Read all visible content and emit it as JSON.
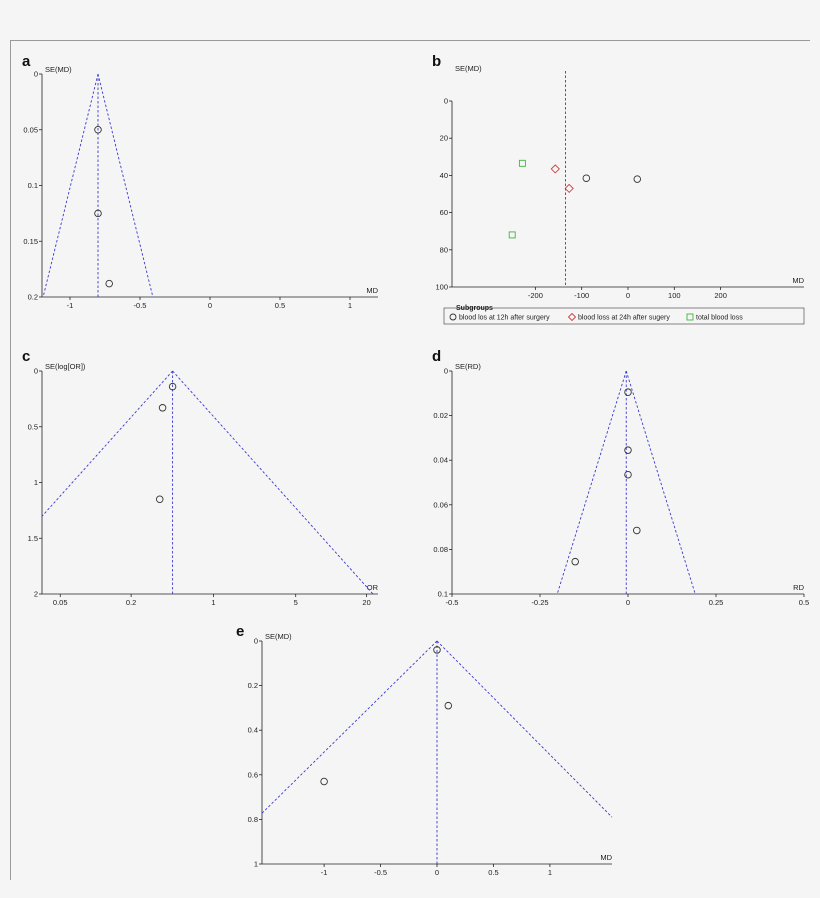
{
  "chart_data": [
    {
      "panel": "a",
      "type": "scatter",
      "xlabel": "MD",
      "ylabel": "SE(MD)",
      "xlim": [
        -1.2,
        1.2
      ],
      "ylim": [
        0,
        0.2
      ],
      "y_reversed": true,
      "xticks": [
        -1,
        -0.5,
        0,
        0.5,
        1
      ],
      "xtick_labels": [
        "-1",
        "-0.5",
        "0",
        "0.5",
        "1"
      ],
      "yticks": [
        0,
        0.05,
        0.1,
        0.15,
        0.2
      ],
      "ytick_labels": [
        "0",
        "0.05",
        "0.1",
        "0.15",
        "0.2"
      ],
      "pooled": -0.8,
      "funnel": true,
      "points": [
        {
          "x": -0.8,
          "y": 0.05,
          "marker": "circle"
        },
        {
          "x": -0.8,
          "y": 0.125,
          "marker": "circle"
        },
        {
          "x": -0.72,
          "y": 0.188,
          "marker": "circle"
        }
      ]
    },
    {
      "panel": "b",
      "type": "scatter",
      "xlabel": "MD",
      "ylabel": "SE(MD)",
      "xlim": [
        -380,
        380
      ],
      "ylim": [
        0,
        100
      ],
      "y_reversed": true,
      "xticks": [
        -200,
        -100,
        0,
        100,
        200
      ],
      "xtick_labels": [
        "-200",
        "-100",
        "0",
        "100",
        "200"
      ],
      "yticks": [
        0,
        20,
        40,
        60,
        80,
        100
      ],
      "ytick_labels": [
        "0",
        "20",
        "40",
        "60",
        "80",
        "100"
      ],
      "pooled": -135,
      "funnel": false,
      "points": [
        {
          "x": -90,
          "y": 41.5,
          "marker": "circle"
        },
        {
          "x": 20,
          "y": 42,
          "marker": "circle"
        },
        {
          "x": -157,
          "y": 36.5,
          "marker": "diamond"
        },
        {
          "x": -127,
          "y": 47,
          "marker": "diamond"
        },
        {
          "x": -228,
          "y": 33.5,
          "marker": "square"
        },
        {
          "x": -250,
          "y": 72,
          "marker": "square"
        }
      ],
      "legend": {
        "title": "Subgroups",
        "position": "bottom",
        "entries": [
          {
            "label": "blood los at 12h after surgery",
            "marker": "circle",
            "color": "#333333"
          },
          {
            "label": "blood loss at 24h after sugery",
            "marker": "diamond",
            "color": "#d23a3a"
          },
          {
            "label": "total blood loss",
            "marker": "square",
            "color": "#3db83d"
          }
        ]
      }
    },
    {
      "panel": "c",
      "type": "scatter",
      "xlabel": "OR",
      "ylabel": "SE(log[OR])",
      "x_scale": "log",
      "xlim": [
        0.035,
        25
      ],
      "ylim": [
        0,
        2
      ],
      "y_reversed": true,
      "xticks": [
        0.05,
        0.2,
        1,
        5,
        20
      ],
      "xtick_labels": [
        "0.05",
        "0.2",
        "1",
        "5",
        "20"
      ],
      "yticks": [
        0,
        0.5,
        1,
        1.5,
        2
      ],
      "ytick_labels": [
        "0",
        "0.5",
        "1",
        "1.5",
        "2"
      ],
      "pooled": 0.45,
      "funnel": true,
      "points": [
        {
          "x": 0.45,
          "y": 0.14,
          "marker": "circle"
        },
        {
          "x": 0.37,
          "y": 0.33,
          "marker": "circle"
        },
        {
          "x": 0.35,
          "y": 1.15,
          "marker": "circle"
        }
      ]
    },
    {
      "panel": "d",
      "type": "scatter",
      "xlabel": "RD",
      "ylabel": "SE(RD)",
      "xlim": [
        -0.5,
        0.5
      ],
      "ylim": [
        0,
        0.1
      ],
      "y_reversed": true,
      "xticks": [
        -0.5,
        -0.25,
        0,
        0.25,
        0.5
      ],
      "xtick_labels": [
        "-0.5",
        "-0.25",
        "0",
        "0.25",
        "0.5"
      ],
      "yticks": [
        0,
        0.02,
        0.04,
        0.06,
        0.08,
        0.1
      ],
      "ytick_labels": [
        "0",
        "0.02",
        "0.04",
        "0.06",
        "0.08",
        "0.1"
      ],
      "pooled": -0.005,
      "funnel": true,
      "points": [
        {
          "x": 0.0,
          "y": 0.0095,
          "marker": "circle"
        },
        {
          "x": 0.0,
          "y": 0.0355,
          "marker": "circle"
        },
        {
          "x": 0.0,
          "y": 0.0465,
          "marker": "circle"
        },
        {
          "x": 0.025,
          "y": 0.0715,
          "marker": "circle"
        },
        {
          "x": -0.15,
          "y": 0.0855,
          "marker": "circle"
        }
      ]
    },
    {
      "panel": "e",
      "type": "scatter",
      "xlabel": "MD",
      "ylabel": "SE(MD)",
      "xlim": [
        -1.55,
        1.55
      ],
      "ylim": [
        0,
        1
      ],
      "y_reversed": true,
      "xticks": [
        -1,
        -0.5,
        0,
        0.5,
        1
      ],
      "xtick_labels": [
        "-1",
        "-0.5",
        "0",
        "0.5",
        "1"
      ],
      "yticks": [
        0,
        0.2,
        0.4,
        0.6,
        0.8,
        1
      ],
      "ytick_labels": [
        "0",
        "0.2",
        "0.4",
        "0.6",
        "0.8",
        "1"
      ],
      "pooled": 0.0,
      "funnel": true,
      "points": [
        {
          "x": 0.0,
          "y": 0.04,
          "marker": "circle"
        },
        {
          "x": 0.1,
          "y": 0.29,
          "marker": "circle"
        },
        {
          "x": -1.0,
          "y": 0.63,
          "marker": "circle"
        }
      ]
    }
  ],
  "colors": {
    "funnel_line": "#3a3ad0",
    "axis": "#222222",
    "circle": "#333333",
    "diamond": "#d23a3a",
    "square": "#3db83d"
  }
}
